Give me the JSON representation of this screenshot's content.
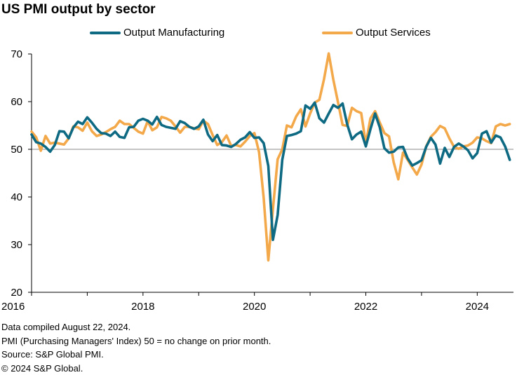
{
  "title": "US PMI output by sector",
  "footnotes": {
    "compiled": "Data compiled August 22, 2024.",
    "pmi_note": "PMI (Purchasing Managers' Index) 50 =  no change on prior month.",
    "source": "Source: S&P Global PMI.",
    "copyright": "© 2024 S&P Global."
  },
  "colors": {
    "manufacturing": "#0e6a82",
    "services": "#f3a84a",
    "reference_line": "#8a8a8a",
    "axis": "#000000"
  },
  "chart_data": {
    "type": "line",
    "title": "US PMI output by sector",
    "xlabel": "",
    "ylabel": "",
    "ylim": [
      20,
      70
    ],
    "yticks": [
      20,
      30,
      40,
      50,
      60,
      70
    ],
    "xlim": [
      "2016-01",
      "2024-08"
    ],
    "xtick_labels": [
      "2016",
      "2018",
      "2020",
      "2022",
      "2024"
    ],
    "reference_line": 50,
    "grid": false,
    "legend_position": "top",
    "start_month": "2016-01",
    "end_month": "2024-08",
    "frequency": "monthly",
    "series": [
      {
        "name": "Output Manufacturing",
        "color": "#0e6a82",
        "values": [
          53.1,
          51.5,
          51.2,
          50.5,
          49.5,
          50.9,
          53.8,
          53.7,
          52.3,
          54.6,
          55.8,
          55.3,
          56.7,
          55.6,
          54.3,
          53.4,
          53.3,
          52.8,
          53.7,
          52.6,
          52.4,
          54.6,
          54.7,
          56.0,
          56.4,
          56.0,
          55.2,
          56.8,
          55.1,
          54.7,
          54.5,
          54.3,
          55.9,
          55.5,
          54.7,
          54.3,
          54.8,
          56.2,
          53.1,
          51.7,
          53.0,
          50.9,
          50.8,
          50.5,
          51.1,
          52.0,
          52.5,
          53.6,
          52.4,
          52.5,
          51.3,
          46.5,
          31.0,
          36.2,
          47.8,
          52.8,
          53.0,
          53.3,
          53.8,
          59.2,
          58.5,
          59.8,
          56.5,
          55.6,
          57.5,
          59.3,
          58.7,
          59.6,
          55.2,
          52.1,
          53.1,
          53.7,
          50.6,
          54.2,
          57.5,
          54.6,
          50.2,
          49.3,
          49.5,
          50.4,
          50.5,
          48.1,
          46.6,
          47.1,
          47.7,
          50.5,
          52.4,
          51.0,
          47.0,
          50.3,
          48.4,
          50.5,
          51.2,
          50.6,
          49.8,
          48.1,
          49.2,
          53.3,
          53.8,
          51.4,
          52.9,
          52.5,
          50.6,
          47.8
        ]
      },
      {
        "name": "Output Services",
        "color": "#f3a84a",
        "values": [
          53.7,
          52.5,
          49.7,
          52.8,
          51.2,
          51.4,
          51.2,
          51.0,
          52.3,
          54.8,
          54.6,
          53.9,
          55.6,
          53.8,
          52.8,
          53.1,
          53.6,
          54.2,
          54.7,
          56.0,
          55.3,
          55.3,
          54.5,
          53.7,
          53.3,
          55.9,
          54.0,
          54.6,
          56.8,
          56.5,
          56.0,
          54.8,
          53.5,
          54.7,
          54.7,
          54.4,
          54.2,
          56.0,
          55.3,
          53.0,
          50.9,
          51.5,
          52.9,
          50.7,
          50.9,
          50.6,
          51.6,
          52.8,
          53.4,
          49.4,
          39.8,
          26.7,
          37.5,
          47.9,
          50.0,
          55.0,
          54.6,
          56.9,
          58.4,
          54.8,
          57.5,
          59.8,
          60.4,
          64.7,
          70.1,
          64.6,
          59.9,
          55.1,
          54.9,
          58.7,
          58.0,
          57.6,
          51.2,
          56.5,
          58.0,
          55.6,
          53.4,
          52.7,
          47.3,
          43.7,
          49.3,
          47.8,
          46.2,
          44.7,
          46.8,
          50.6,
          52.6,
          53.6,
          54.9,
          54.4,
          52.3,
          50.5,
          50.1,
          50.6,
          50.8,
          51.4,
          52.5,
          52.3,
          51.7,
          51.3,
          54.8,
          55.3,
          55.0,
          55.3
        ]
      }
    ]
  }
}
